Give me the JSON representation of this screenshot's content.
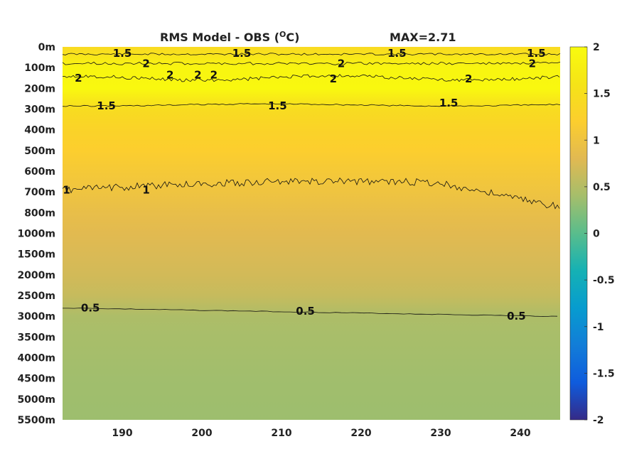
{
  "chart_data": {
    "type": "heatmap",
    "title": "RMS Model - OBS (",
    "title_unit_super": "O",
    "title_unit_rest": "C)",
    "max_label": "MAX=2.71",
    "xlabel": "",
    "ylabel": "",
    "x_ticks": [
      190,
      200,
      210,
      220,
      230,
      240
    ],
    "xlim": [
      182.5,
      245
    ],
    "y_tick_labels": [
      "0m",
      "100m",
      "200m",
      "300m",
      "400m",
      "500m",
      "600m",
      "700m",
      "800m",
      "1000m",
      "1500m",
      "2000m",
      "2500m",
      "3000m",
      "3500m",
      "4000m",
      "4500m",
      "5000m",
      "5500m"
    ],
    "colorbar": {
      "range": [
        -2,
        2
      ],
      "ticks": [
        "2",
        "1.5",
        "1",
        "0.5",
        "0",
        "-0.5",
        "-1",
        "-1.5",
        "-2"
      ],
      "colormap": "parula"
    },
    "depth_profile_values": [
      {
        "depth": "0m",
        "value": 1.4
      },
      {
        "depth": "100m",
        "value": 1.9
      },
      {
        "depth": "200m",
        "value": 1.95
      },
      {
        "depth": "300m",
        "value": 1.45
      },
      {
        "depth": "400m",
        "value": 1.3
      },
      {
        "depth": "500m",
        "value": 1.2
      },
      {
        "depth": "600m",
        "value": 1.1
      },
      {
        "depth": "700m",
        "value": 1.0
      },
      {
        "depth": "800m",
        "value": 0.9
      },
      {
        "depth": "1000m",
        "value": 0.82
      },
      {
        "depth": "1500m",
        "value": 0.75
      },
      {
        "depth": "2000m",
        "value": 0.7
      },
      {
        "depth": "2500m",
        "value": 0.62
      },
      {
        "depth": "3000m",
        "value": 0.45
      },
      {
        "depth": "3500m",
        "value": 0.42
      },
      {
        "depth": "4000m",
        "value": 0.4
      },
      {
        "depth": "4500m",
        "value": 0.38
      },
      {
        "depth": "5000m",
        "value": 0.37
      },
      {
        "depth": "5500m",
        "value": 0.36
      }
    ],
    "contour_labels": [
      {
        "text": "1.5",
        "x": 190,
        "depth_index": 0.3
      },
      {
        "text": "1.5",
        "x": 205,
        "depth_index": 0.3
      },
      {
        "text": "1.5",
        "x": 224.5,
        "depth_index": 0.3
      },
      {
        "text": "1.5",
        "x": 242,
        "depth_index": 0.3
      },
      {
        "text": "2",
        "x": 193,
        "depth_index": 0.8
      },
      {
        "text": "2",
        "x": 217.5,
        "depth_index": 0.8
      },
      {
        "text": "2",
        "x": 241.5,
        "depth_index": 0.8
      },
      {
        "text": "2",
        "x": 184.5,
        "depth_index": 1.5
      },
      {
        "text": "2",
        "x": 196,
        "depth_index": 1.35
      },
      {
        "text": "2",
        "x": 199.5,
        "depth_index": 1.35
      },
      {
        "text": "2",
        "x": 201.5,
        "depth_index": 1.35
      },
      {
        "text": "2",
        "x": 216.5,
        "depth_index": 1.55
      },
      {
        "text": "2",
        "x": 233.5,
        "depth_index": 1.55
      },
      {
        "text": "1.5",
        "x": 188,
        "depth_index": 2.85
      },
      {
        "text": "1.5",
        "x": 209.5,
        "depth_index": 2.85
      },
      {
        "text": "1.5",
        "x": 231,
        "depth_index": 2.7
      },
      {
        "text": "1",
        "x": 183,
        "depth_index": 6.9
      },
      {
        "text": "1",
        "x": 193,
        "depth_index": 6.9
      },
      {
        "text": "0.5",
        "x": 186,
        "depth_index": 12.6
      },
      {
        "text": "0.5",
        "x": 213,
        "depth_index": 12.75
      },
      {
        "text": "0.5",
        "x": 239.5,
        "depth_index": 13.0
      }
    ]
  }
}
